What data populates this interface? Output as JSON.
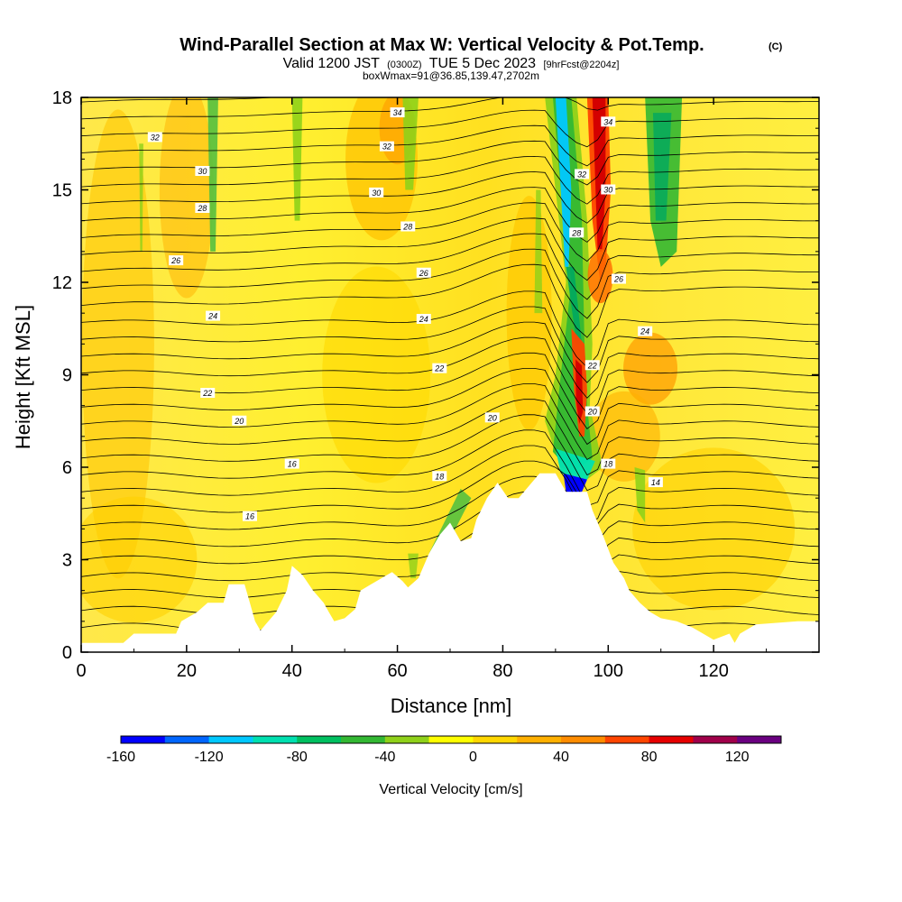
{
  "chart_data": {
    "type": "heatmap",
    "title": "Wind-Parallel Section at Max W: Vertical Velocity & Pot.Temp.",
    "title_unit": "(C)",
    "subtitle_main": "Valid 1200 JST",
    "subtitle_utc": "(0300Z)",
    "subtitle_date": "TUE 5 Dec 2023",
    "subtitle_fcst": "[9hrFcst@2204z]",
    "subtitle_box": "boxWmax=91@36.85,139.47,2702m",
    "xlabel": "Distance [nm]",
    "ylabel": "Height [Kft MSL]",
    "xlim": [
      0,
      140
    ],
    "ylim": [
      0,
      18
    ],
    "xticks": [
      0,
      20,
      40,
      60,
      80,
      100,
      120
    ],
    "yticks": [
      0,
      3,
      6,
      9,
      12,
      15,
      18
    ],
    "colorbar": {
      "label": "Vertical Velocity [cm/s]",
      "min": -160,
      "max": 140,
      "ticks": [
        -160,
        -120,
        -80,
        -40,
        0,
        40,
        80,
        120
      ],
      "colors": [
        "#0000ff",
        "#0066ff",
        "#00c8ff",
        "#00e0b0",
        "#00c060",
        "#33b833",
        "#8fd11a",
        "#ffff00",
        "#ffd700",
        "#ffb000",
        "#ff8c00",
        "#ff4500",
        "#e60000",
        "#a0004a",
        "#6a0080"
      ]
    },
    "terrain_kft": [
      [
        0,
        0.3
      ],
      [
        8,
        0.3
      ],
      [
        10,
        0.6
      ],
      [
        18,
        0.6
      ],
      [
        19,
        1.0
      ],
      [
        22,
        1.3
      ],
      [
        24,
        1.6
      ],
      [
        27,
        1.6
      ],
      [
        28,
        2.2
      ],
      [
        31,
        2.2
      ],
      [
        32,
        1.6
      ],
      [
        33,
        1.0
      ],
      [
        34,
        0.7
      ],
      [
        35,
        0.9
      ],
      [
        37,
        1.3
      ],
      [
        39,
        2.0
      ],
      [
        40,
        2.8
      ],
      [
        42,
        2.5
      ],
      [
        44,
        2.0
      ],
      [
        46,
        1.6
      ],
      [
        47,
        1.3
      ],
      [
        48,
        1.0
      ],
      [
        50,
        1.1
      ],
      [
        52,
        1.4
      ],
      [
        53,
        2.0
      ],
      [
        55,
        2.2
      ],
      [
        57,
        2.4
      ],
      [
        59,
        2.6
      ],
      [
        61,
        2.3
      ],
      [
        62,
        2.1
      ],
      [
        64,
        2.4
      ],
      [
        66,
        3.2
      ],
      [
        68,
        3.8
      ],
      [
        70,
        4.2
      ],
      [
        72,
        3.6
      ],
      [
        74,
        3.7
      ],
      [
        75,
        4.3
      ],
      [
        77,
        5.0
      ],
      [
        79,
        5.5
      ],
      [
        81,
        5.0
      ],
      [
        83,
        5.0
      ],
      [
        85,
        5.4
      ],
      [
        87,
        5.8
      ],
      [
        90,
        5.8
      ],
      [
        92,
        5.2
      ],
      [
        96,
        5.2
      ],
      [
        97,
        4.6
      ],
      [
        99,
        3.8
      ],
      [
        101,
        2.9
      ],
      [
        103,
        2.4
      ],
      [
        104,
        2.0
      ],
      [
        106,
        1.6
      ],
      [
        108,
        1.3
      ],
      [
        110,
        1.1
      ],
      [
        113,
        1.0
      ],
      [
        116,
        0.8
      ],
      [
        118,
        0.6
      ],
      [
        120,
        0.4
      ],
      [
        123,
        0.6
      ],
      [
        124,
        0.3
      ],
      [
        125,
        0.6
      ],
      [
        128,
        0.9
      ],
      [
        136,
        1.0
      ],
      [
        140,
        1.0
      ]
    ],
    "potential_temperature_contours": [
      {
        "level": 14,
        "label": "14",
        "x": 109,
        "y": 5.5
      },
      {
        "level": 16,
        "label": "16",
        "x": 32,
        "y": 4.4
      },
      {
        "level": 16,
        "label": "16",
        "x": 40,
        "y": 6.1
      },
      {
        "level": 18,
        "label": "18",
        "x": 68,
        "y": 5.7
      },
      {
        "level": 18,
        "label": "18",
        "x": 100,
        "y": 6.1
      },
      {
        "level": 20,
        "label": "20",
        "x": 30,
        "y": 7.5
      },
      {
        "level": 20,
        "label": "20",
        "x": 78,
        "y": 7.6
      },
      {
        "level": 20,
        "label": "20",
        "x": 97,
        "y": 7.8
      },
      {
        "level": 22,
        "label": "22",
        "x": 24,
        "y": 8.4
      },
      {
        "level": 22,
        "label": "22",
        "x": 68,
        "y": 9.2
      },
      {
        "level": 22,
        "label": "22",
        "x": 97,
        "y": 9.3
      },
      {
        "level": 24,
        "label": "24",
        "x": 25,
        "y": 10.9
      },
      {
        "level": 24,
        "label": "24",
        "x": 65,
        "y": 10.8
      },
      {
        "level": 24,
        "label": "24",
        "x": 107,
        "y": 10.4
      },
      {
        "level": 26,
        "label": "26",
        "x": 18,
        "y": 12.7
      },
      {
        "level": 26,
        "label": "26",
        "x": 65,
        "y": 12.3
      },
      {
        "level": 26,
        "label": "26",
        "x": 102,
        "y": 12.1
      },
      {
        "level": 28,
        "label": "28",
        "x": 23,
        "y": 14.4
      },
      {
        "level": 28,
        "label": "28",
        "x": 62,
        "y": 13.8
      },
      {
        "level": 28,
        "label": "28",
        "x": 94,
        "y": 13.6
      },
      {
        "level": 30,
        "label": "30",
        "x": 23,
        "y": 15.6
      },
      {
        "level": 30,
        "label": "30",
        "x": 56,
        "y": 14.9
      },
      {
        "level": 30,
        "label": "30",
        "x": 100,
        "y": 15.0
      },
      {
        "level": 32,
        "label": "32",
        "x": 14,
        "y": 16.7
      },
      {
        "level": 32,
        "label": "32",
        "x": 58,
        "y": 16.4
      },
      {
        "level": 32,
        "label": "32",
        "x": 95,
        "y": 15.5
      },
      {
        "level": 34,
        "label": "34",
        "x": 60,
        "y": 17.5
      },
      {
        "level": 34,
        "label": "34",
        "x": 100,
        "y": 17.2
      }
    ],
    "vertical_velocity_features": [
      {
        "kind": "updraft",
        "x": 100,
        "y": 15.2,
        "w_cms": 100
      },
      {
        "kind": "updraft",
        "x": 94,
        "y": 8.5,
        "w_cms": 90
      },
      {
        "kind": "downdraft",
        "x": 93,
        "y": 5.5,
        "w_cms": -160
      },
      {
        "kind": "downdraft",
        "x": 92,
        "y": 14.0,
        "w_cms": -100
      },
      {
        "kind": "downdraft",
        "x": 111,
        "y": 15.5,
        "w_cms": -40
      },
      {
        "kind": "downdraft",
        "x": 66,
        "y": 4.2,
        "w_cms": -50
      }
    ]
  }
}
